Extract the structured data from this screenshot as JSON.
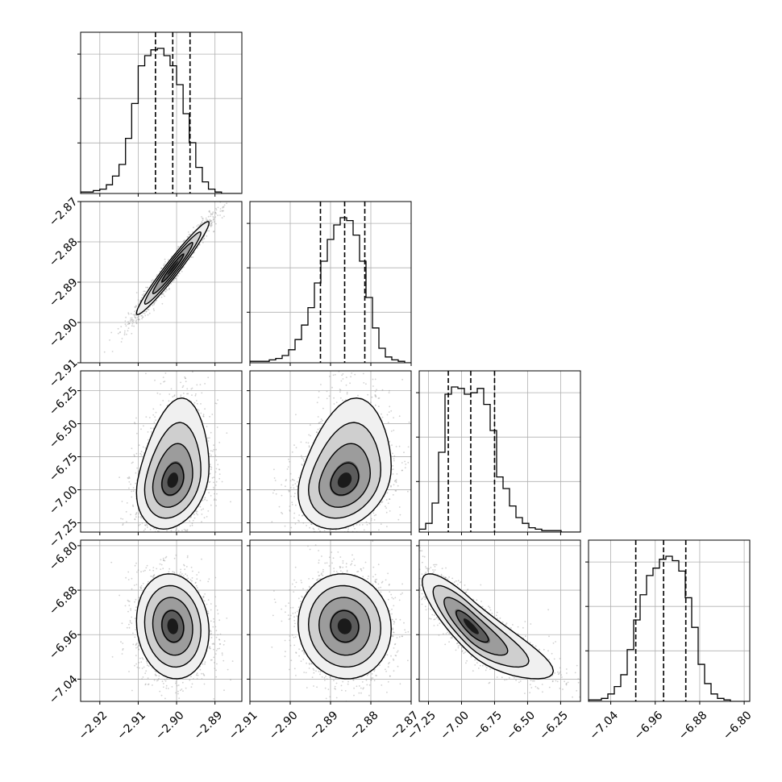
{
  "chart_data": {
    "type": "corner",
    "title": "",
    "dimensions": 4,
    "parameter_labels": [
      "",
      "",
      "",
      ""
    ],
    "axis_ranges": [
      [
        -2.925,
        -2.883
      ],
      [
        -2.91,
        -2.87
      ],
      [
        -7.32,
        -6.1
      ],
      [
        -7.08,
        -6.79
      ]
    ],
    "ticks": [
      {
        "values": [
          -2.92,
          -2.91,
          -2.9,
          -2.89
        ],
        "labels": [
          "−2.92",
          "−2.91",
          "−2.90",
          "−2.89"
        ]
      },
      {
        "values": [
          -2.91,
          -2.9,
          -2.89,
          -2.88,
          -2.87
        ],
        "labels": [
          "−2.91",
          "−2.90",
          "−2.89",
          "−2.88",
          "−2.87"
        ]
      },
      {
        "values": [
          -7.25,
          -7.0,
          -6.75,
          -6.5,
          -6.25
        ],
        "labels": [
          "−7.25",
          "−7.00",
          "−6.75",
          "−6.50",
          "−6.25"
        ]
      },
      {
        "values": [
          -7.04,
          -6.96,
          -6.88,
          -6.8
        ],
        "labels": [
          "−7.04",
          "−6.96",
          "−6.88",
          "−6.80"
        ]
      }
    ],
    "grid": true,
    "quantiles": [
      0.16,
      0.5,
      0.84
    ],
    "marginals": [
      {
        "param": 0,
        "quantile_values": [
          -2.9055,
          -2.901,
          -2.8965
        ],
        "bin_edges": [
          -2.925,
          -2.9233,
          -2.9217,
          -2.92,
          -2.9183,
          -2.9167,
          -2.915,
          -2.9133,
          -2.9117,
          -2.91,
          -2.9083,
          -2.9067,
          -2.905,
          -2.9033,
          -2.9017,
          -2.9,
          -2.8983,
          -2.8967,
          -2.895,
          -2.8933,
          -2.8917,
          -2.89,
          -2.8883,
          -2.8867,
          -2.885,
          -2.8833
        ],
        "counts": [
          1,
          1,
          2,
          3,
          6,
          12,
          20,
          38,
          62,
          88,
          95,
          99,
          100,
          95,
          88,
          75,
          55,
          35,
          18,
          8,
          3,
          1,
          0,
          0,
          0
        ]
      },
      {
        "param": 1,
        "quantile_values": [
          -2.8925,
          -2.8865,
          -2.8815
        ],
        "bin_edges": [
          -2.91,
          -2.9084,
          -2.9068,
          -2.9052,
          -2.9036,
          -2.902,
          -2.9004,
          -2.8988,
          -2.8972,
          -2.8956,
          -2.894,
          -2.8924,
          -2.8908,
          -2.8892,
          -2.8876,
          -2.886,
          -2.8844,
          -2.8828,
          -2.8812,
          -2.8796,
          -2.878,
          -2.8764,
          -2.8748,
          -2.8732,
          -2.8716,
          -2.87
        ],
        "counts": [
          1,
          1,
          1,
          2,
          3,
          5,
          9,
          16,
          26,
          38,
          55,
          70,
          85,
          95,
          100,
          98,
          88,
          70,
          45,
          24,
          10,
          4,
          2,
          1,
          0
        ]
      },
      {
        "param": 2,
        "quantile_values": [
          -7.1,
          -6.93,
          -6.75
        ],
        "bin_edges": [
          -7.32,
          -7.2712,
          -7.2224,
          -7.1736,
          -7.1248,
          -7.076,
          -7.0272,
          -6.9784,
          -6.9296,
          -6.8808,
          -6.832,
          -6.7832,
          -6.7344,
          -6.6856,
          -6.6368,
          -6.588,
          -6.5392,
          -6.4904,
          -6.4416,
          -6.3928,
          -6.344,
          -6.2952,
          -6.2464,
          -6.1976,
          -6.1488,
          -6.1
        ],
        "counts": [
          2,
          6,
          20,
          55,
          95,
          100,
          99,
          95,
          96,
          99,
          88,
          70,
          38,
          30,
          18,
          10,
          6,
          3,
          2,
          1,
          1,
          1,
          0,
          0,
          0
        ]
      },
      {
        "param": 3,
        "quantile_values": [
          -6.995,
          -6.945,
          -6.905
        ],
        "bin_edges": [
          -7.08,
          -7.0684,
          -7.0568,
          -7.0452,
          -7.0336,
          -7.022,
          -7.0104,
          -6.9988,
          -6.9872,
          -6.9756,
          -6.964,
          -6.9524,
          -6.9408,
          -6.9292,
          -6.9176,
          -6.906,
          -6.8944,
          -6.8828,
          -6.8712,
          -6.8596,
          -6.848,
          -6.8364,
          -6.8248,
          -6.8132,
          -6.8016,
          -6.79
        ],
        "counts": [
          1,
          1,
          2,
          5,
          10,
          18,
          35,
          55,
          72,
          85,
          90,
          96,
          98,
          95,
          88,
          70,
          50,
          25,
          12,
          5,
          2,
          1,
          0,
          0,
          0
        ]
      }
    ],
    "joint_panels": [
      {
        "x_param": 0,
        "y_param": 1,
        "correlation": 0.97
      },
      {
        "x_param": 0,
        "y_param": 2,
        "correlation": 0.25
      },
      {
        "x_param": 1,
        "y_param": 2,
        "correlation": 0.25
      },
      {
        "x_param": 0,
        "y_param": 3,
        "correlation": -0.1
      },
      {
        "x_param": 1,
        "y_param": 3,
        "correlation": -0.05
      },
      {
        "x_param": 2,
        "y_param": 3,
        "correlation": -0.85
      }
    ],
    "colors": {
      "hist_line": "#000000",
      "quantile_line": "#000000",
      "grid": "#b0b0b0",
      "scatter": "#999999",
      "contour": "#000000"
    }
  }
}
